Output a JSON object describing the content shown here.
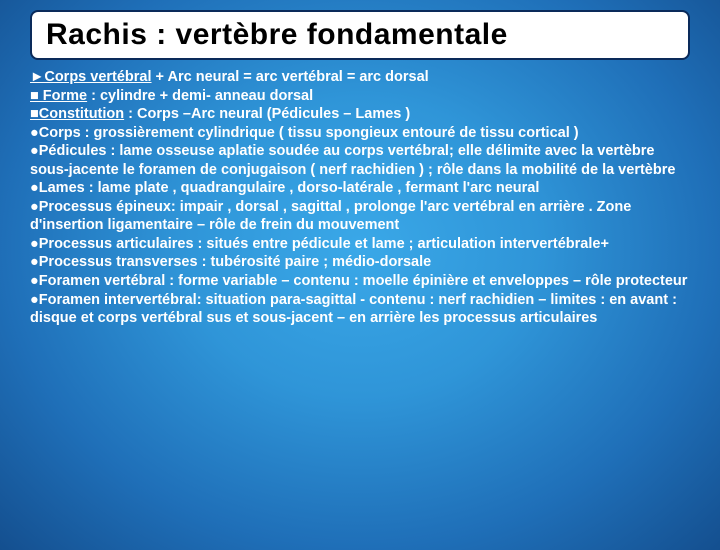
{
  "colors": {
    "bg_center": "#3aa8e8",
    "bg_edge": "#144f8f",
    "title_bg": "#ffffff",
    "title_border": "#0a2a5a",
    "title_text": "#000000",
    "body_text": "#ffffff"
  },
  "typography": {
    "title_fontsize": 30,
    "body_fontsize": 14.5,
    "body_lineheight": 1.28,
    "font_family": "Arial"
  },
  "title": "Rachis : vertèbre fondamentale",
  "lines": {
    "l1a": "►Corps vertébral",
    "l1b": "   + Arc neural = arc vertébral = arc  dorsal",
    "l2a": "■ Forme",
    "l2b": "           : cylindre + demi- anneau dorsal",
    "l3a": "■Constitution",
    "l3b": "  : Corps –Arc neural (Pédicules – Lames )",
    "l4": "●Corps :  grossièrement cylindrique ( tissu spongieux entouré de tissu cortical )",
    "l5": "●Pédicules : lame osseuse aplatie soudée au corps vertébral; elle délimite avec la vertèbre sous-jacente le foramen de conjugaison ( nerf rachidien ) ; rôle dans la mobilité de la vertèbre",
    "l6": "●Lames : lame plate , quadrangulaire    , dorso-latérale , fermant l'arc neural",
    "l7": "●Processus épineux: impair , dorsal , sagittal , prolonge l'arc vertébral en arrière . Zone d'insertion ligamentaire – rôle de frein du mouvement",
    "l8": "●Processus articulaires : situés entre pédicule et lame ; articulation intervertébrale+",
    "l9": "●Processus transverses : tubérosité paire ; médio-dorsale",
    "l10": "●Foramen vertébral : forme variable – contenu : moelle épinière et enveloppes  – rôle protecteur",
    "l11": "●Foramen intervertébral: situation para-sagittal -  contenu : nerf rachidien – limites : en avant : disque et corps vertébral sus et sous-jacent – en arrière les processus articulaires"
  }
}
